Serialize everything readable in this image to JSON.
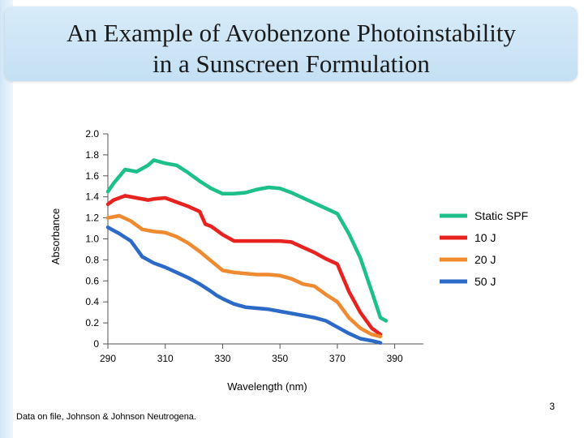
{
  "slide": {
    "title_line1": "An Example of Avobenzone Photoinstability",
    "title_line2": "in a Sunscreen Formulation",
    "footnote": "Data on file, Johnson & Johnson Neutrogena.",
    "page_number": "3"
  },
  "chart_data": {
    "type": "line",
    "title": "",
    "xlabel": "Wavelength (nm)",
    "ylabel": "Absorbance",
    "xlim": [
      290,
      400
    ],
    "ylim": [
      0,
      2.0
    ],
    "x_ticks": [
      290,
      310,
      330,
      350,
      370,
      390
    ],
    "x_tick_labels": [
      "290",
      "310",
      "330",
      "350",
      "370",
      "390"
    ],
    "y_ticks": [
      0,
      0.2,
      0.4,
      0.6,
      0.8,
      1.0,
      1.2,
      1.4,
      1.6,
      1.8,
      2.0
    ],
    "y_tick_labels": [
      "0",
      "0.2",
      "0.4",
      "0.6",
      "0.8",
      "1.0",
      "1.2",
      "1.4",
      "1.6",
      "1.8",
      "2.0"
    ],
    "grid": false,
    "legend_position": "right",
    "series": [
      {
        "name": "Static SPF",
        "color": "#1dbf8a",
        "points": [
          [
            290,
            1.45
          ],
          [
            292,
            1.53
          ],
          [
            296,
            1.66
          ],
          [
            300,
            1.64
          ],
          [
            304,
            1.7
          ],
          [
            306,
            1.75
          ],
          [
            310,
            1.72
          ],
          [
            314,
            1.7
          ],
          [
            318,
            1.63
          ],
          [
            322,
            1.55
          ],
          [
            326,
            1.48
          ],
          [
            330,
            1.43
          ],
          [
            334,
            1.43
          ],
          [
            338,
            1.44
          ],
          [
            342,
            1.47
          ],
          [
            346,
            1.49
          ],
          [
            350,
            1.48
          ],
          [
            354,
            1.44
          ],
          [
            358,
            1.39
          ],
          [
            362,
            1.34
          ],
          [
            366,
            1.29
          ],
          [
            370,
            1.24
          ],
          [
            374,
            1.05
          ],
          [
            378,
            0.82
          ],
          [
            382,
            0.5
          ],
          [
            385,
            0.25
          ],
          [
            387,
            0.22
          ]
        ]
      },
      {
        "name": "10 J",
        "color": "#e8231f",
        "points": [
          [
            290,
            1.33
          ],
          [
            292,
            1.37
          ],
          [
            296,
            1.41
          ],
          [
            300,
            1.39
          ],
          [
            304,
            1.37
          ],
          [
            306,
            1.38
          ],
          [
            310,
            1.39
          ],
          [
            314,
            1.35
          ],
          [
            318,
            1.31
          ],
          [
            322,
            1.26
          ],
          [
            324,
            1.14
          ],
          [
            326,
            1.12
          ],
          [
            330,
            1.04
          ],
          [
            334,
            0.98
          ],
          [
            338,
            0.98
          ],
          [
            342,
            0.98
          ],
          [
            346,
            0.98
          ],
          [
            350,
            0.98
          ],
          [
            354,
            0.97
          ],
          [
            358,
            0.92
          ],
          [
            362,
            0.87
          ],
          [
            366,
            0.81
          ],
          [
            370,
            0.76
          ],
          [
            374,
            0.5
          ],
          [
            378,
            0.3
          ],
          [
            382,
            0.15
          ],
          [
            385,
            0.09
          ]
        ]
      },
      {
        "name": "20 J",
        "color": "#f08a30",
        "points": [
          [
            290,
            1.2
          ],
          [
            294,
            1.22
          ],
          [
            298,
            1.17
          ],
          [
            302,
            1.09
          ],
          [
            306,
            1.07
          ],
          [
            310,
            1.06
          ],
          [
            314,
            1.02
          ],
          [
            318,
            0.96
          ],
          [
            322,
            0.88
          ],
          [
            326,
            0.79
          ],
          [
            330,
            0.7
          ],
          [
            334,
            0.68
          ],
          [
            338,
            0.67
          ],
          [
            342,
            0.66
          ],
          [
            346,
            0.66
          ],
          [
            350,
            0.65
          ],
          [
            354,
            0.62
          ],
          [
            358,
            0.57
          ],
          [
            362,
            0.55
          ],
          [
            366,
            0.47
          ],
          [
            370,
            0.4
          ],
          [
            374,
            0.25
          ],
          [
            378,
            0.15
          ],
          [
            382,
            0.09
          ],
          [
            385,
            0.07
          ]
        ]
      },
      {
        "name": "50 J",
        "color": "#2b6ac6",
        "points": [
          [
            290,
            1.11
          ],
          [
            294,
            1.05
          ],
          [
            298,
            0.98
          ],
          [
            302,
            0.83
          ],
          [
            306,
            0.77
          ],
          [
            310,
            0.73
          ],
          [
            314,
            0.68
          ],
          [
            318,
            0.63
          ],
          [
            322,
            0.57
          ],
          [
            326,
            0.5
          ],
          [
            328,
            0.46
          ],
          [
            330,
            0.43
          ],
          [
            334,
            0.38
          ],
          [
            338,
            0.35
          ],
          [
            342,
            0.34
          ],
          [
            346,
            0.33
          ],
          [
            350,
            0.31
          ],
          [
            354,
            0.29
          ],
          [
            358,
            0.27
          ],
          [
            362,
            0.25
          ],
          [
            366,
            0.22
          ],
          [
            370,
            0.16
          ],
          [
            374,
            0.1
          ],
          [
            378,
            0.05
          ],
          [
            382,
            0.03
          ],
          [
            385,
            0.01
          ]
        ]
      }
    ]
  }
}
